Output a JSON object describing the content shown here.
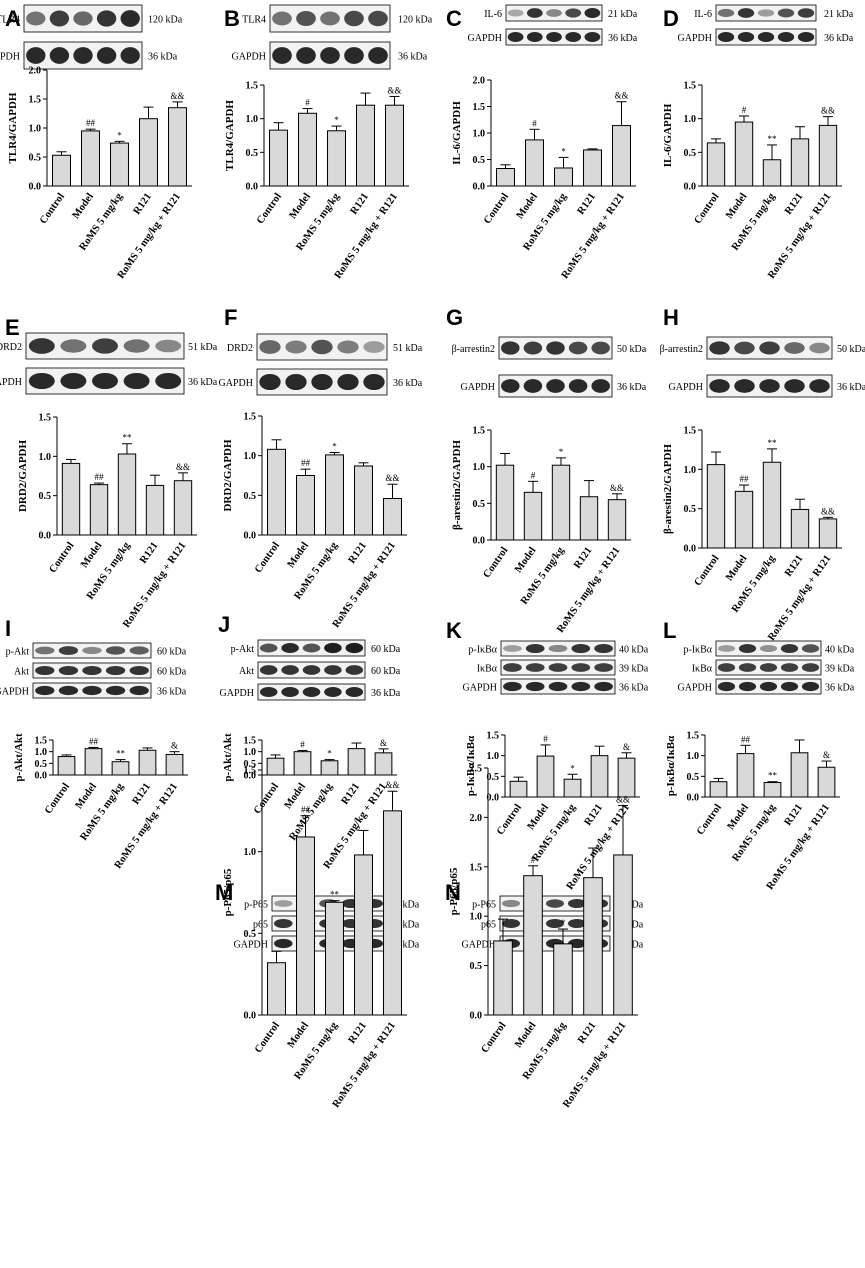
{
  "figure": {
    "groups": [
      "Control",
      "Model",
      "RoMS 5 mg/kg",
      "R121",
      "RoMS 5 mg/kg + R121"
    ]
  },
  "chart_data": [
    {
      "panel": "A",
      "type": "bar",
      "ylabel": "TLR4/GAPDH",
      "ylim": [
        0,
        2.0
      ],
      "yticks": [
        0.0,
        0.5,
        1.0,
        1.5,
        2.0
      ],
      "values": [
        0.53,
        0.95,
        0.74,
        1.16,
        1.35
      ],
      "errors": [
        0.06,
        0.03,
        0.03,
        0.2,
        0.1
      ],
      "sig": [
        "",
        "##",
        "*",
        "",
        "&&"
      ],
      "blots": [
        {
          "name": "TLR4",
          "kda": "120 kDa",
          "intensity": [
            0.55,
            0.8,
            0.6,
            0.85,
            0.9
          ]
        },
        {
          "name": "GAPDH",
          "kda": "36 kDa",
          "intensity": [
            0.9,
            0.9,
            0.9,
            0.9,
            0.9
          ]
        }
      ]
    },
    {
      "panel": "B",
      "type": "bar",
      "ylabel": "TLR4/GAPDH",
      "ylim": [
        0,
        1.5
      ],
      "yticks": [
        0.0,
        0.5,
        1.0,
        1.5
      ],
      "values": [
        0.83,
        1.08,
        0.82,
        1.2,
        1.2
      ],
      "errors": [
        0.11,
        0.07,
        0.07,
        0.18,
        0.13
      ],
      "sig": [
        "",
        "#",
        "*",
        "",
        "&&"
      ],
      "blots": [
        {
          "name": "TLR4",
          "kda": "120 kDa",
          "intensity": [
            0.55,
            0.7,
            0.55,
            0.75,
            0.75
          ]
        },
        {
          "name": "GAPDH",
          "kda": "36 kDa",
          "intensity": [
            0.9,
            0.9,
            0.9,
            0.9,
            0.9
          ]
        }
      ]
    },
    {
      "panel": "C",
      "type": "bar",
      "ylabel": "IL-6/GAPDH",
      "ylim": [
        0,
        2.0
      ],
      "yticks": [
        0.0,
        0.5,
        1.0,
        1.5,
        2.0
      ],
      "values": [
        0.33,
        0.87,
        0.34,
        0.68,
        1.14
      ],
      "errors": [
        0.07,
        0.2,
        0.2,
        0.02,
        0.45
      ],
      "sig": [
        "",
        "#",
        "*",
        "",
        "&&"
      ],
      "blots": [
        {
          "name": "IL-6",
          "kda": "21 kDa",
          "intensity": [
            0.3,
            0.85,
            0.45,
            0.75,
            0.9
          ]
        },
        {
          "name": "GAPDH",
          "kda": "36 kDa",
          "intensity": [
            0.9,
            0.9,
            0.9,
            0.9,
            0.9
          ]
        }
      ]
    },
    {
      "panel": "D",
      "type": "bar",
      "ylabel": "IL-6/GAPDH",
      "ylim": [
        0,
        1.5
      ],
      "yticks": [
        0.0,
        0.5,
        1.0,
        1.5
      ],
      "values": [
        0.64,
        0.95,
        0.39,
        0.7,
        0.9
      ],
      "errors": [
        0.06,
        0.09,
        0.22,
        0.18,
        0.13
      ],
      "sig": [
        "",
        "#",
        "**",
        "",
        "&&"
      ],
      "blots": [
        {
          "name": "IL-6",
          "kda": "21 kDa",
          "intensity": [
            0.55,
            0.85,
            0.35,
            0.7,
            0.8
          ]
        },
        {
          "name": "GAPDH",
          "kda": "36 kDa",
          "intensity": [
            0.9,
            0.9,
            0.9,
            0.9,
            0.9
          ]
        }
      ]
    },
    {
      "panel": "E",
      "type": "bar",
      "ylabel": "DRD2/GAPDH",
      "ylim": [
        0,
        1.5
      ],
      "yticks": [
        0.0,
        0.5,
        1.0,
        1.5
      ],
      "values": [
        0.91,
        0.64,
        1.03,
        0.63,
        0.69
      ],
      "errors": [
        0.05,
        0.02,
        0.13,
        0.13,
        0.1
      ],
      "sig": [
        "",
        "##",
        "**",
        "",
        "&&"
      ],
      "blots": [
        {
          "name": "DRD2",
          "kda": "51 kDa",
          "intensity": [
            0.85,
            0.55,
            0.8,
            0.55,
            0.45
          ]
        },
        {
          "name": "GAPDH",
          "kda": "36 kDa",
          "intensity": [
            0.9,
            0.9,
            0.9,
            0.9,
            0.9
          ]
        }
      ]
    },
    {
      "panel": "F",
      "type": "bar",
      "ylabel": "DRD2/GAPDH",
      "ylim": [
        0,
        1.5
      ],
      "yticks": [
        0.0,
        0.5,
        1.0,
        1.5
      ],
      "values": [
        1.08,
        0.75,
        1.01,
        0.87,
        0.46
      ],
      "errors": [
        0.12,
        0.08,
        0.03,
        0.04,
        0.18
      ],
      "sig": [
        "",
        "##",
        "*",
        "",
        "&&"
      ],
      "blots": [
        {
          "name": "DRD2",
          "kda": "51 kDa",
          "intensity": [
            0.6,
            0.5,
            0.7,
            0.5,
            0.35
          ]
        },
        {
          "name": "GAPDH",
          "kda": "36 kDa",
          "intensity": [
            0.9,
            0.9,
            0.9,
            0.9,
            0.9
          ]
        }
      ]
    },
    {
      "panel": "G",
      "type": "bar",
      "ylabel": "β-arestin2/GAPDH",
      "ylim": [
        0,
        1.5
      ],
      "yticks": [
        0.0,
        0.5,
        1.0,
        1.5
      ],
      "values": [
        1.02,
        0.65,
        1.02,
        0.59,
        0.55
      ],
      "errors": [
        0.16,
        0.15,
        0.1,
        0.22,
        0.08
      ],
      "sig": [
        "",
        "#",
        "*",
        "",
        "&&"
      ],
      "blots": [
        {
          "name": "β-arrestin2",
          "kda": "50 kDa",
          "intensity": [
            0.85,
            0.8,
            0.85,
            0.75,
            0.75
          ]
        },
        {
          "name": "GAPDH",
          "kda": "36 kDa",
          "intensity": [
            0.9,
            0.9,
            0.9,
            0.9,
            0.9
          ]
        }
      ]
    },
    {
      "panel": "H",
      "type": "bar",
      "ylabel": "β-arestin2/GAPDH",
      "ylim": [
        0,
        1.5
      ],
      "yticks": [
        0.0,
        0.5,
        1.0,
        1.5
      ],
      "values": [
        1.06,
        0.72,
        1.09,
        0.49,
        0.37
      ],
      "errors": [
        0.16,
        0.08,
        0.17,
        0.13,
        0.02
      ],
      "sig": [
        "",
        "##",
        "**",
        "",
        "&&"
      ],
      "blots": [
        {
          "name": "β-arrestin2",
          "kda": "50 kDa",
          "intensity": [
            0.85,
            0.75,
            0.8,
            0.6,
            0.45
          ]
        },
        {
          "name": "GAPDH",
          "kda": "36 kDa",
          "intensity": [
            0.9,
            0.9,
            0.9,
            0.9,
            0.9
          ]
        }
      ]
    },
    {
      "panel": "I",
      "type": "bar",
      "ylabel": "p-Akt/Akt",
      "ylim": [
        0,
        1.5
      ],
      "yticks": [
        0.0,
        0.5,
        1.0,
        1.5
      ],
      "values": [
        0.79,
        1.13,
        0.57,
        1.06,
        0.88
      ],
      "errors": [
        0.07,
        0.05,
        0.09,
        0.1,
        0.12
      ],
      "sig": [
        "",
        "##",
        "**",
        "",
        "&"
      ],
      "blots": [
        {
          "name": "p-Akt",
          "kda": "60 kDa",
          "intensity": [
            0.55,
            0.8,
            0.45,
            0.7,
            0.65
          ]
        },
        {
          "name": "Akt",
          "kda": "60 kDa",
          "intensity": [
            0.85,
            0.85,
            0.85,
            0.85,
            0.85
          ]
        },
        {
          "name": "GAPDH",
          "kda": "36 kDa",
          "intensity": [
            0.9,
            0.9,
            0.9,
            0.9,
            0.9
          ]
        }
      ]
    },
    {
      "panel": "J",
      "type": "bar",
      "ylabel": "p-Akt/Akt",
      "ylim": [
        0,
        1.5
      ],
      "yticks": [
        0.0,
        0.5,
        1.0,
        1.5
      ],
      "values": [
        0.72,
        1.0,
        0.61,
        1.13,
        0.95
      ],
      "errors": [
        0.14,
        0.05,
        0.05,
        0.24,
        0.17
      ],
      "sig": [
        "",
        "#",
        "*",
        "",
        "&"
      ],
      "blots": [
        {
          "name": "p-Akt",
          "kda": "60 kDa",
          "intensity": [
            0.7,
            0.9,
            0.7,
            0.95,
            0.95
          ]
        },
        {
          "name": "Akt",
          "kda": "60 kDa",
          "intensity": [
            0.85,
            0.85,
            0.85,
            0.85,
            0.85
          ]
        },
        {
          "name": "GAPDH",
          "kda": "36 kDa",
          "intensity": [
            0.9,
            0.9,
            0.9,
            0.9,
            0.9
          ]
        }
      ]
    },
    {
      "panel": "K",
      "type": "bar",
      "ylabel": "p-IκBα/IκBα",
      "ylim": [
        0,
        1.5
      ],
      "yticks": [
        0.0,
        0.5,
        1.0,
        1.5
      ],
      "values": [
        0.38,
        0.99,
        0.43,
        1.0,
        0.94
      ],
      "errors": [
        0.1,
        0.27,
        0.12,
        0.23,
        0.13
      ],
      "sig": [
        "",
        "#",
        "*",
        "",
        "&"
      ],
      "blots": [
        {
          "name": "p-IκBα",
          "kda": "40 kDa",
          "intensity": [
            0.35,
            0.85,
            0.45,
            0.85,
            0.85
          ]
        },
        {
          "name": "IκBα",
          "kda": "39 kDa",
          "intensity": [
            0.8,
            0.8,
            0.8,
            0.8,
            0.8
          ]
        },
        {
          "name": "GAPDH",
          "kda": "36 kDa",
          "intensity": [
            0.9,
            0.9,
            0.9,
            0.9,
            0.9
          ]
        }
      ]
    },
    {
      "panel": "L",
      "type": "bar",
      "ylabel": "p-IκBα/IκBα",
      "ylim": [
        0,
        1.5
      ],
      "yticks": [
        0.0,
        0.5,
        1.0,
        1.5
      ],
      "values": [
        0.37,
        1.05,
        0.35,
        1.07,
        0.72
      ],
      "errors": [
        0.08,
        0.2,
        0.02,
        0.31,
        0.15
      ],
      "sig": [
        "",
        "##",
        "**",
        "",
        "&"
      ],
      "blots": [
        {
          "name": "p-IκBα",
          "kda": "40 kDa",
          "intensity": [
            0.35,
            0.85,
            0.4,
            0.85,
            0.7
          ]
        },
        {
          "name": "IκBα",
          "kda": "39 kDa",
          "intensity": [
            0.8,
            0.8,
            0.8,
            0.8,
            0.8
          ]
        },
        {
          "name": "GAPDH",
          "kda": "36 kDa",
          "intensity": [
            0.9,
            0.9,
            0.9,
            0.9,
            0.9
          ]
        }
      ]
    },
    {
      "panel": "M",
      "type": "bar",
      "ylabel": "p-P65/p65",
      "ylim": [
        0,
        1.5
      ],
      "yticks": [
        0.0,
        0.5,
        1.0,
        1.5
      ],
      "values": [
        0.32,
        1.09,
        0.69,
        0.98,
        1.25
      ],
      "errors": [
        0.07,
        0.13,
        0.01,
        0.15,
        0.12
      ],
      "sig": [
        "",
        "##",
        "**",
        "",
        "&&"
      ],
      "blots": [
        {
          "name": "p-P65",
          "kda": "65 kDa",
          "intensity": [
            0.35,
            0.85,
            0.7,
            0.85,
            0.85
          ]
        },
        {
          "name": "p65",
          "kda": "65 kDa",
          "intensity": [
            0.85,
            0.85,
            0.85,
            0.85,
            0.85
          ]
        },
        {
          "name": "GAPDH",
          "kda": "36 kDa",
          "intensity": [
            0.9,
            0.9,
            0.9,
            0.9,
            0.9
          ]
        }
      ]
    },
    {
      "panel": "N",
      "type": "bar",
      "ylabel": "p-P65/p65",
      "ylim": [
        0,
        2.5
      ],
      "yticks": [
        0.0,
        0.5,
        1.0,
        1.5,
        2.0,
        2.5
      ],
      "values": [
        0.75,
        1.41,
        0.72,
        1.39,
        1.62
      ],
      "errors": [
        0.22,
        0.1,
        0.15,
        0.3,
        0.5
      ],
      "sig": [
        "",
        "#",
        "*",
        "",
        "&&"
      ],
      "blots": [
        {
          "name": "p-P65",
          "kda": "65 kDa",
          "intensity": [
            0.45,
            0.85,
            0.75,
            0.85,
            0.85
          ]
        },
        {
          "name": "p65",
          "kda": "65 kDa",
          "intensity": [
            0.85,
            0.85,
            0.85,
            0.85,
            0.85
          ]
        },
        {
          "name": "GAPDH",
          "kda": "36 kDa",
          "intensity": [
            0.9,
            0.9,
            0.9,
            0.9,
            0.9
          ]
        }
      ]
    }
  ]
}
